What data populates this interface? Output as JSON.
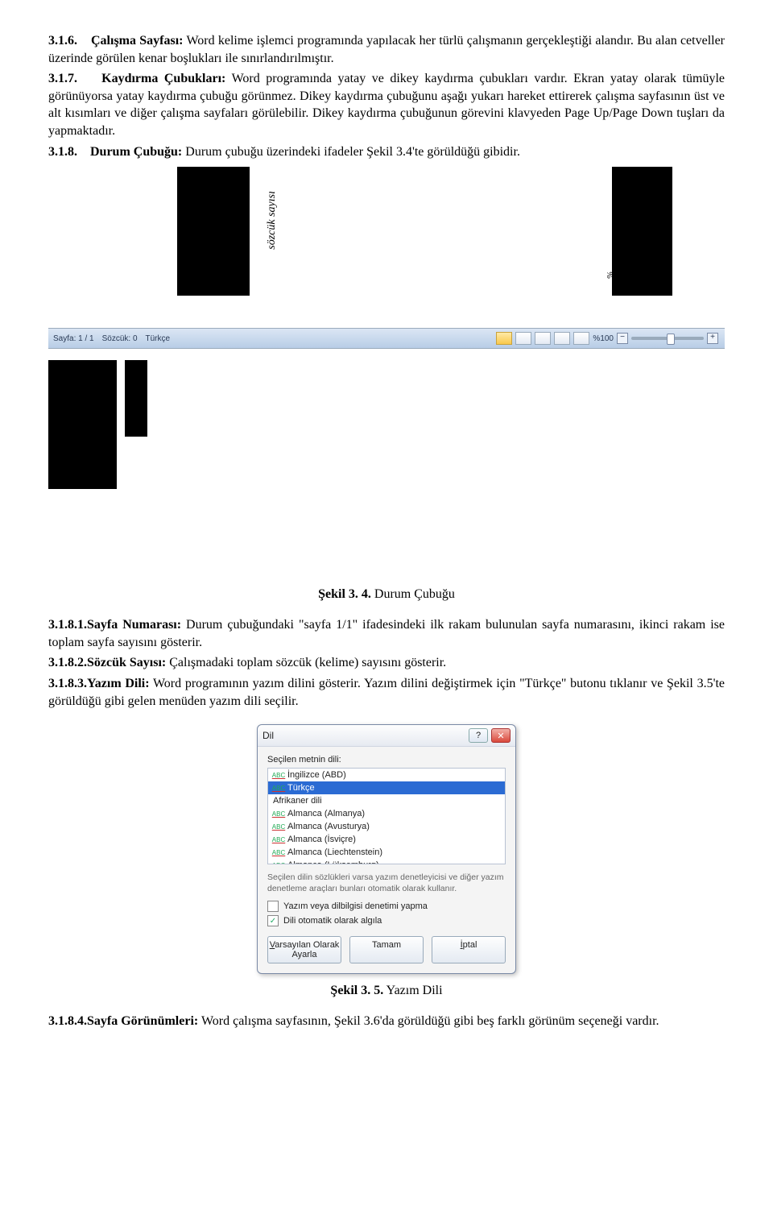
{
  "sections": {
    "s316": {
      "num": "3.1.6.",
      "title": "Çalışma Sayfası:",
      "body_a": " Word kelime işlemci programında yapılacak her türlü çalışmanın gerçekleştiği alandır. Bu alan cetveller üzerinde görülen kenar boşlukları ile sınırlandırılmıştır."
    },
    "s317": {
      "num": "3.1.7.",
      "title": "Kaydırma Çubukları:",
      "body_a": " Word programında yatay ve dikey kaydırma çubukları vardır. Ekran yatay olarak tümüyle görünüyorsa yatay kaydırma çubuğu görünmez. Dikey kaydırma çubuğunu aşağı yukarı hareket ettirerek çalışma sayfasının üst ve alt kısımları ve diğer çalışma sayfaları görülebilir. Dikey kaydırma çubuğunun görevini klavyeden Page Up/Page Down tuşları da yapmaktadır."
    },
    "s318": {
      "num": "3.1.8.",
      "title": "Durum Çubuğu:",
      "body_a": " Durum çubuğu üzerindeki ifadeler Şekil 3.4'te görüldüğü gibidir."
    },
    "s3181": {
      "num": "3.1.8.1.",
      "title": "Sayfa Numarası:",
      "body_a": " Durum çubuğundaki \"sayfa 1/1\" ifadesindeki ilk rakam bulunulan sayfa numarasını, ikinci rakam ise toplam sayfa sayısını gösterir."
    },
    "s3182": {
      "num_title": "3.1.8.2.Sözcük Sayısı:",
      "body_a": " Çalışmadaki toplam sözcük (kelime) sayısını gösterir."
    },
    "s3183": {
      "num_title": "3.1.8.3.Yazım Dili:",
      "body_a": " Word programının yazım dilini gösterir. Yazım dilini değiştirmek için \"Türkçe\" butonu tıklanır ve Şekil 3.5'te görüldüğü gibi gelen menüden yazım dili seçilir."
    },
    "s3184": {
      "num_title": "3.1.8.4.Sayfa Görünümleri:",
      "body_a": " Word çalışma sayfasının, Şekil 3.6'da görüldüğü gibi beş farklı görünüm seçeneği vardır."
    }
  },
  "statusbar": {
    "page": "Sayfa: 1 / 1",
    "words": "Sözcük: 0",
    "lang": "Türkçe",
    "zoom": "%100",
    "vlabel1": "sözcük sayısı",
    "vlabel2": "%"
  },
  "captions": {
    "fig34_label": "Şekil 3. 4.",
    "fig34_text": " Durum Çubuğu",
    "fig35_label": "Şekil 3. 5.",
    "fig35_text": " Yazım Dili"
  },
  "dialog": {
    "title": "Dil",
    "label": "Seçilen metnin dili:",
    "langs": [
      "İngilizce (ABD)",
      "Türkçe",
      "Afrikaner dili",
      "Almanca (Almanya)",
      "Almanca (Avusturya)",
      "Almanca (İsviçre)",
      "Almanca (Liechtenstein)",
      "Almanca (Lüksemburg)"
    ],
    "selected_index": 1,
    "desc": "Seçilen dilin sözlükleri varsa yazım denetleyicisi ve diğer yazım denetleme araçları bunları otomatik olarak kullanır.",
    "chk1": "Yazım veya dilbilgisi denetimi yapma",
    "chk2": "Dili otomatik olarak algıla",
    "chk1_checked": false,
    "chk2_checked": true,
    "btn_default": "Varsayılan Olarak Ayarla",
    "btn_ok": "Tamam",
    "btn_cancel": "İptal"
  },
  "colors": {
    "statusbar_top": "#dbe6f4",
    "statusbar_bottom": "#b8cde6",
    "selection": "#2b6bd3",
    "close_btn": "#d9483b"
  }
}
